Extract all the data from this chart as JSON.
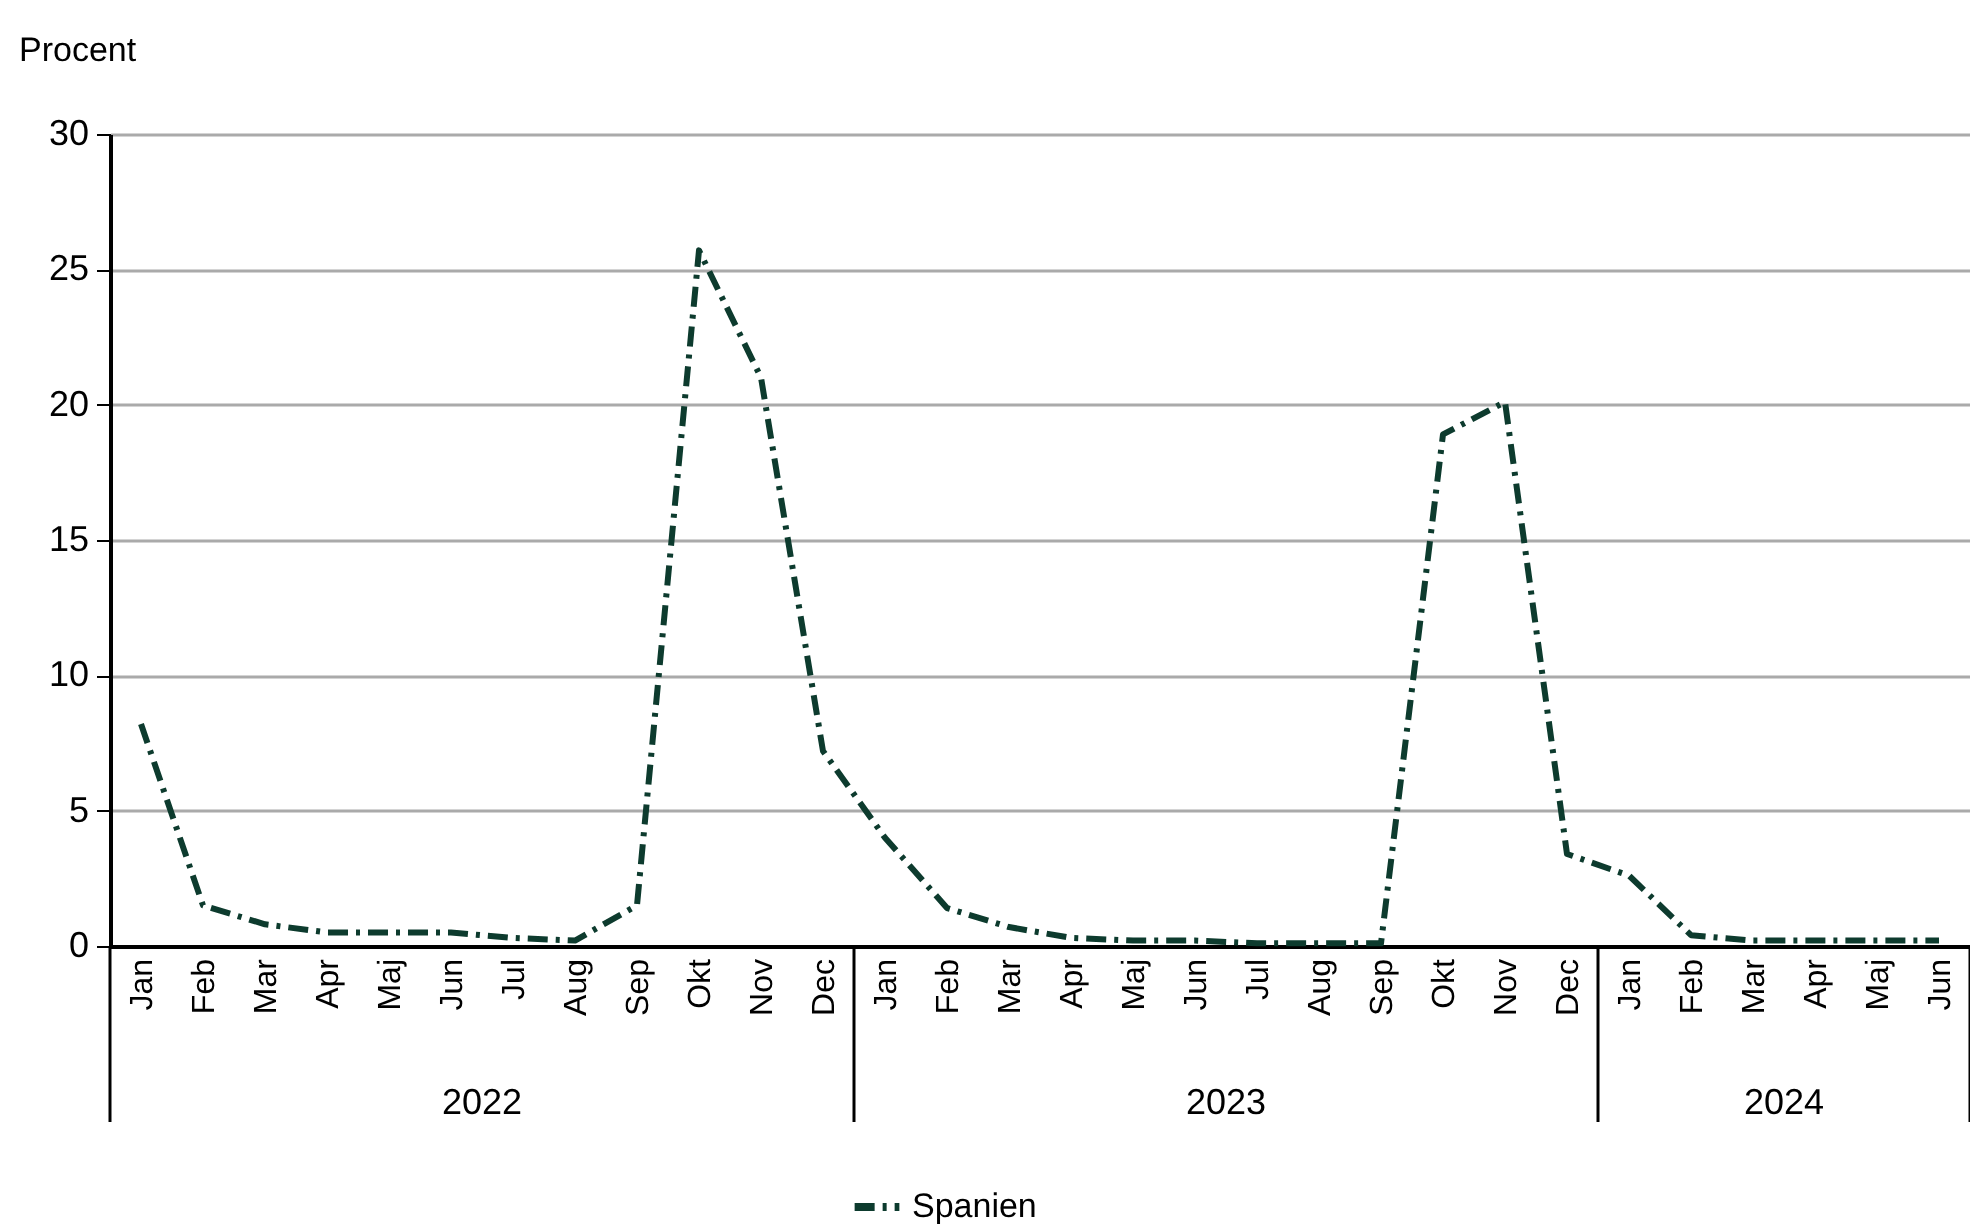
{
  "chart_data": {
    "type": "line",
    "ylabel": "Procent",
    "categories": [
      "Jan",
      "Feb",
      "Mar",
      "Apr",
      "Maj",
      "Jun",
      "Jul",
      "Aug",
      "Sep",
      "Okt",
      "Nov",
      "Dec",
      "Jan",
      "Feb",
      "Mar",
      "Apr",
      "Maj",
      "Jun",
      "Jul",
      "Aug",
      "Sep",
      "Okt",
      "Nov",
      "Dec",
      "Jan",
      "Feb",
      "Mar",
      "Apr",
      "Maj",
      "Jun"
    ],
    "series": [
      {
        "name": "Spanien",
        "color": "#0d3b2e",
        "values": [
          8.2,
          1.5,
          0.8,
          0.5,
          0.5,
          0.5,
          0.3,
          0.2,
          1.5,
          25.7,
          21,
          7.2,
          4,
          1.4,
          0.7,
          0.3,
          0.2,
          0.2,
          0.1,
          0.1,
          0.1,
          18.9,
          20.1,
          3.4,
          2.6,
          0.4,
          0.2,
          0.2,
          0.2,
          0.2
        ]
      }
    ],
    "annotations": [
      "2022",
      "2023",
      "2024"
    ],
    "ylim": [
      0,
      30
    ],
    "yticks": [
      0,
      5,
      10,
      15,
      20,
      25,
      30
    ],
    "grid": "y",
    "legend": "bottom",
    "marker": "none",
    "line_style": "dashed"
  }
}
